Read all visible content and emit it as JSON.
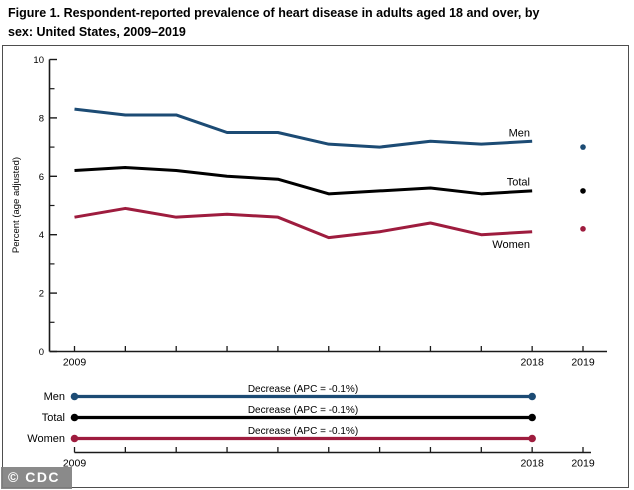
{
  "title_lines": [
    "Figure 1. Respondent-reported prevalence of heart disease in adults aged 18 and over, by",
    "sex: United States, 2009–2019"
  ],
  "watermark": "© CDC",
  "colors": {
    "men": "#1c4b74",
    "total": "#000000",
    "women": "#9e1c3e",
    "axis": "#1a1a1a",
    "border": "#4e4e4e",
    "watermark_bg": "#808080"
  },
  "chart_data": {
    "type": "line",
    "title": "Figure 1. Respondent-reported prevalence of heart disease in adults aged 18 and over, by sex: United States, 2009–2019",
    "xlabel": "",
    "ylabel": "Percent (age adjusted)",
    "ylim": [
      0,
      10
    ],
    "grid": "off",
    "legend_position": "inline-end-of-line",
    "yticks_labeled": [
      0,
      2,
      4,
      6,
      8,
      10
    ],
    "yticks_minor": [
      1,
      3,
      5,
      7,
      9
    ],
    "x": [
      2009,
      2010,
      2011,
      2012,
      2013,
      2014,
      2015,
      2016,
      2017,
      2018
    ],
    "x_2019": 2019,
    "x_axis_labels": [
      "2009",
      "2018",
      "2019"
    ],
    "series": [
      {
        "name": "Men",
        "color": "#1c4b74",
        "values": [
          8.3,
          8.1,
          8.1,
          7.5,
          7.5,
          7.1,
          7.0,
          7.2,
          7.1,
          7.2
        ],
        "value_2019": 7.0
      },
      {
        "name": "Total",
        "color": "#000000",
        "values": [
          6.2,
          6.3,
          6.2,
          6.0,
          5.9,
          5.4,
          5.5,
          5.6,
          5.4,
          5.5
        ],
        "value_2019": 5.5
      },
      {
        "name": "Women",
        "color": "#9e1c3e",
        "values": [
          4.6,
          4.9,
          4.6,
          4.7,
          4.6,
          3.9,
          4.1,
          4.4,
          4.0,
          4.1
        ],
        "value_2019": 4.2
      }
    ]
  },
  "apc_panel": {
    "rows": [
      {
        "label": "Men",
        "annotation": "Decrease (APC = -0.1%)",
        "color": "#1c4b74"
      },
      {
        "label": "Total",
        "annotation": "Decrease (APC = -0.1%)",
        "color": "#000000"
      },
      {
        "label": "Women",
        "annotation": "Decrease (APC = -0.1%)",
        "color": "#9e1c3e"
      }
    ],
    "span_years": [
      2009,
      2018
    ],
    "axis_labels": [
      "2009",
      "2018",
      "2019"
    ]
  }
}
